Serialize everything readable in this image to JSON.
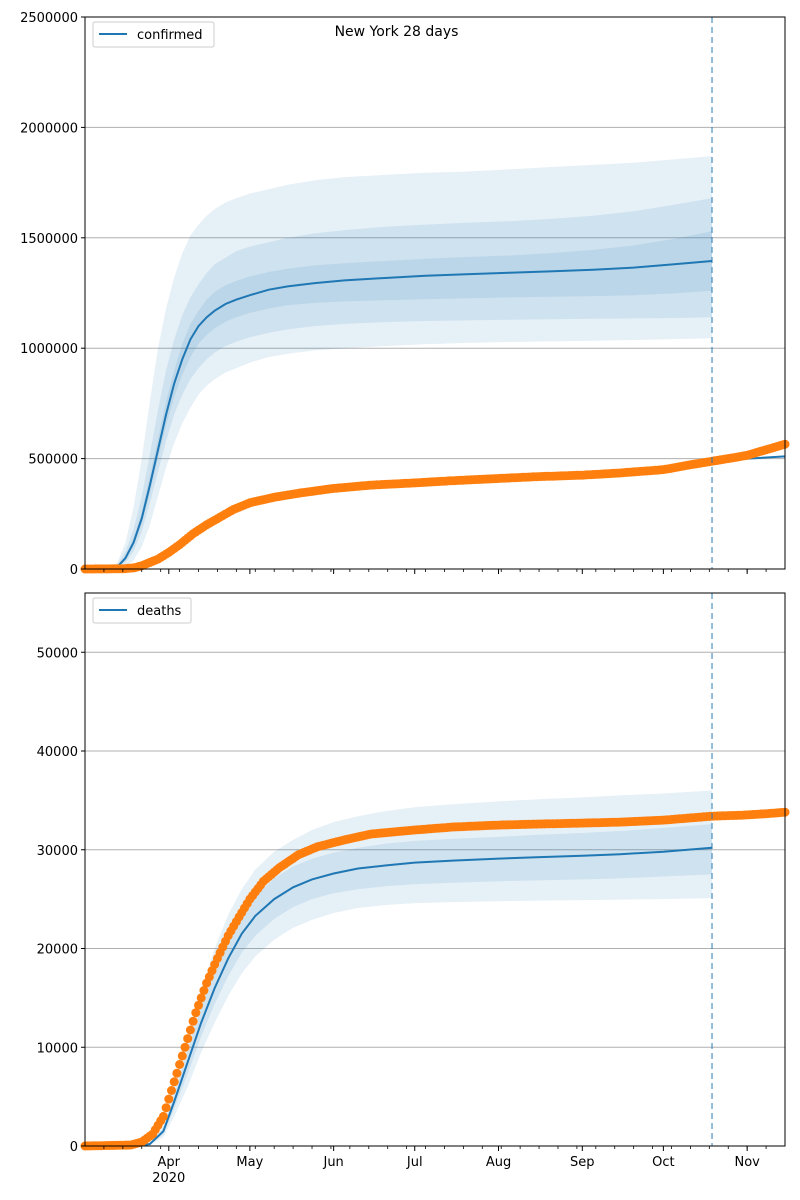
{
  "figure": {
    "title": "New York 28 days"
  },
  "colors": {
    "model": "#1f77b4",
    "observed": "#ff7f0e",
    "band": "#1f77b4",
    "grid": "#b0b0b0",
    "vline": "#1f77b4"
  },
  "chart_data": [
    {
      "type": "line",
      "title": "New York 28 days",
      "legend": {
        "entries": [
          "confirmed"
        ],
        "placement": "top-left"
      },
      "xlim": [
        "2020-03-01",
        "2020-11-15"
      ],
      "forecast_date": "2020-10-19",
      "ylim": [
        0,
        2500000
      ],
      "yticks": [
        0,
        500000,
        1000000,
        1500000,
        2000000,
        2500000
      ],
      "ytick_labels": [
        "0",
        "500000",
        "1000000",
        "1500000",
        "2000000",
        "2500000"
      ],
      "grid": "y",
      "series": [
        {
          "name": "confirmed",
          "kind": "model-median-line",
          "dates": [
            "2020-03-01",
            "2020-03-10",
            "2020-03-13",
            "2020-03-16",
            "2020-03-19",
            "2020-03-22",
            "2020-03-25",
            "2020-03-28",
            "2020-03-31",
            "2020-04-03",
            "2020-04-06",
            "2020-04-09",
            "2020-04-12",
            "2020-04-15",
            "2020-04-18",
            "2020-04-22",
            "2020-04-26",
            "2020-05-01",
            "2020-05-08",
            "2020-05-15",
            "2020-05-25",
            "2020-06-05",
            "2020-06-20",
            "2020-07-05",
            "2020-07-20",
            "2020-08-05",
            "2020-08-20",
            "2020-09-05",
            "2020-09-20",
            "2020-10-05",
            "2020-10-19"
          ],
          "values": [
            0,
            0,
            10000,
            50000,
            120000,
            230000,
            380000,
            540000,
            700000,
            840000,
            950000,
            1040000,
            1100000,
            1140000,
            1170000,
            1200000,
            1220000,
            1240000,
            1265000,
            1280000,
            1295000,
            1307000,
            1318000,
            1328000,
            1335000,
            1342000,
            1348000,
            1355000,
            1365000,
            1380000,
            1395000
          ],
          "bands": [
            {
              "lower": [
                0,
                0,
                0,
                10000,
                40000,
                100000,
                200000,
                330000,
                460000,
                570000,
                660000,
                730000,
                790000,
                830000,
                860000,
                890000,
                910000,
                935000,
                960000,
                975000,
                990000,
                1000000,
                1010000,
                1018000,
                1024000,
                1028000,
                1031000,
                1034000,
                1037000,
                1041000,
                1045000
              ],
              "upper": [
                0,
                0,
                30000,
                120000,
                280000,
                500000,
                760000,
                1000000,
                1180000,
                1320000,
                1430000,
                1510000,
                1560000,
                1600000,
                1630000,
                1660000,
                1680000,
                1700000,
                1720000,
                1740000,
                1760000,
                1775000,
                1785000,
                1795000,
                1800000,
                1810000,
                1820000,
                1830000,
                1840000,
                1855000,
                1870000
              ]
            },
            {
              "lower": [
                0,
                0,
                5000,
                30000,
                80000,
                170000,
                300000,
                440000,
                580000,
                700000,
                790000,
                860000,
                910000,
                950000,
                980000,
                1010000,
                1030000,
                1050000,
                1070000,
                1085000,
                1100000,
                1110000,
                1118000,
                1123000,
                1126000,
                1129000,
                1131000,
                1133000,
                1135000,
                1137000,
                1140000
              ],
              "upper": [
                0,
                0,
                20000,
                80000,
                180000,
                330000,
                520000,
                720000,
                900000,
                1040000,
                1150000,
                1230000,
                1290000,
                1340000,
                1380000,
                1410000,
                1440000,
                1460000,
                1480000,
                1500000,
                1520000,
                1535000,
                1550000,
                1560000,
                1568000,
                1575000,
                1585000,
                1600000,
                1620000,
                1650000,
                1680000
              ]
            },
            {
              "lower": [
                0,
                0,
                8000,
                42000,
                105000,
                205000,
                345000,
                500000,
                650000,
                780000,
                880000,
                960000,
                1020000,
                1060000,
                1090000,
                1120000,
                1140000,
                1160000,
                1180000,
                1195000,
                1205000,
                1212000,
                1218000,
                1222000,
                1226000,
                1230000,
                1233000,
                1236000,
                1240000,
                1248000,
                1260000
              ],
              "upper": [
                0,
                0,
                13000,
                60000,
                140000,
                260000,
                420000,
                590000,
                760000,
                900000,
                1020000,
                1110000,
                1170000,
                1220000,
                1255000,
                1285000,
                1305000,
                1325000,
                1345000,
                1360000,
                1375000,
                1385000,
                1395000,
                1405000,
                1413000,
                1420000,
                1430000,
                1445000,
                1465000,
                1495000,
                1530000
              ]
            }
          ]
        },
        {
          "name": "",
          "kind": "observed-points",
          "dates": [
            "2020-03-01",
            "2020-03-15",
            "2020-03-19",
            "2020-03-22",
            "2020-03-25",
            "2020-03-28",
            "2020-04-01",
            "2020-04-05",
            "2020-04-10",
            "2020-04-15",
            "2020-04-20",
            "2020-04-25",
            "2020-05-01",
            "2020-05-10",
            "2020-05-20",
            "2020-06-01",
            "2020-06-15",
            "2020-07-01",
            "2020-07-15",
            "2020-08-01",
            "2020-08-15",
            "2020-09-01",
            "2020-09-15",
            "2020-10-01",
            "2020-10-10",
            "2020-10-19",
            "2020-10-25",
            "2020-11-01",
            "2020-11-08",
            "2020-11-15"
          ],
          "values": [
            0,
            1000,
            5000,
            15000,
            30000,
            45000,
            75000,
            110000,
            160000,
            200000,
            235000,
            270000,
            300000,
            325000,
            345000,
            365000,
            380000,
            390000,
            400000,
            410000,
            418000,
            425000,
            435000,
            450000,
            470000,
            488000,
            500000,
            515000,
            540000,
            565000
          ]
        },
        {
          "name": "",
          "kind": "observed-line",
          "dates": [
            "2020-10-19",
            "2020-11-15"
          ],
          "values": [
            490000,
            510000
          ]
        }
      ]
    },
    {
      "type": "line",
      "title": "",
      "legend": {
        "entries": [
          "deaths"
        ],
        "placement": "top-left"
      },
      "xlim": [
        "2020-03-01",
        "2020-11-15"
      ],
      "forecast_date": "2020-10-19",
      "ylim": [
        0,
        56000
      ],
      "yticks": [
        0,
        10000,
        20000,
        30000,
        40000,
        50000
      ],
      "ytick_labels": [
        "0",
        "10000",
        "20000",
        "30000",
        "40000",
        "50000"
      ],
      "xtick_labels": [
        "Apr\n2020",
        "May",
        "Jun",
        "Jul",
        "Aug",
        "Sep",
        "Oct",
        "Nov"
      ],
      "xtick_dates": [
        "2020-04-01",
        "2020-05-01",
        "2020-06-01",
        "2020-07-01",
        "2020-08-01",
        "2020-09-01",
        "2020-10-01",
        "2020-11-01"
      ],
      "grid": "y",
      "series": [
        {
          "name": "deaths",
          "kind": "model-median-line",
          "dates": [
            "2020-03-01",
            "2020-03-20",
            "2020-03-25",
            "2020-03-30",
            "2020-04-03",
            "2020-04-08",
            "2020-04-13",
            "2020-04-18",
            "2020-04-23",
            "2020-04-28",
            "2020-05-03",
            "2020-05-10",
            "2020-05-17",
            "2020-05-24",
            "2020-06-01",
            "2020-06-10",
            "2020-06-20",
            "2020-07-01",
            "2020-07-15",
            "2020-08-01",
            "2020-08-15",
            "2020-09-01",
            "2020-09-15",
            "2020-10-01",
            "2020-10-19"
          ],
          "values": [
            0,
            0,
            200,
            1500,
            4500,
            8500,
            12500,
            16000,
            19000,
            21500,
            23300,
            25000,
            26200,
            27000,
            27600,
            28100,
            28400,
            28700,
            28900,
            29100,
            29250,
            29400,
            29550,
            29800,
            30200
          ],
          "bands": [
            {
              "lower": [
                0,
                0,
                100,
                900,
                3000,
                6000,
                9500,
                12500,
                15200,
                17500,
                19200,
                20900,
                22100,
                22900,
                23600,
                24100,
                24400,
                24600,
                24700,
                24800,
                24850,
                24900,
                24950,
                25000,
                25100
              ],
              "upper": [
                0,
                0,
                300,
                2200,
                6200,
                11000,
                15800,
                20000,
                23400,
                26000,
                28000,
                29800,
                31000,
                32000,
                32800,
                33400,
                33900,
                34300,
                34600,
                34900,
                35100,
                35300,
                35500,
                35700,
                36000
              ]
            },
            {
              "lower": [
                0,
                0,
                150,
                1200,
                3800,
                7300,
                11100,
                14400,
                17200,
                19600,
                21300,
                23000,
                24200,
                25000,
                25600,
                26000,
                26300,
                26500,
                26650,
                26800,
                26900,
                27000,
                27100,
                27300,
                27500
              ],
              "upper": [
                0,
                0,
                250,
                1800,
                5200,
                9700,
                14100,
                17800,
                20900,
                23500,
                25300,
                27100,
                28300,
                29100,
                29700,
                30200,
                30600,
                30900,
                31100,
                31300,
                31500,
                31700,
                31900,
                32200,
                32600
              ]
            }
          ]
        },
        {
          "name": "",
          "kind": "observed-points",
          "dates": [
            "2020-03-01",
            "2020-03-18",
            "2020-03-22",
            "2020-03-26",
            "2020-03-30",
            "2020-04-03",
            "2020-04-07",
            "2020-04-11",
            "2020-04-15",
            "2020-04-19",
            "2020-04-23",
            "2020-04-27",
            "2020-05-01",
            "2020-05-06",
            "2020-05-12",
            "2020-05-19",
            "2020-05-26",
            "2020-06-05",
            "2020-06-15",
            "2020-07-01",
            "2020-07-15",
            "2020-08-01",
            "2020-08-15",
            "2020-09-01",
            "2020-09-15",
            "2020-10-01",
            "2020-10-19",
            "2020-10-30",
            "2020-11-08",
            "2020-11-15"
          ],
          "values": [
            0,
            100,
            400,
            1200,
            3000,
            6500,
            10000,
            13500,
            16500,
            19000,
            21300,
            23200,
            25000,
            26800,
            28200,
            29500,
            30300,
            31000,
            31600,
            32000,
            32300,
            32500,
            32600,
            32700,
            32800,
            33000,
            33400,
            33500,
            33650,
            33800
          ]
        }
      ]
    }
  ]
}
